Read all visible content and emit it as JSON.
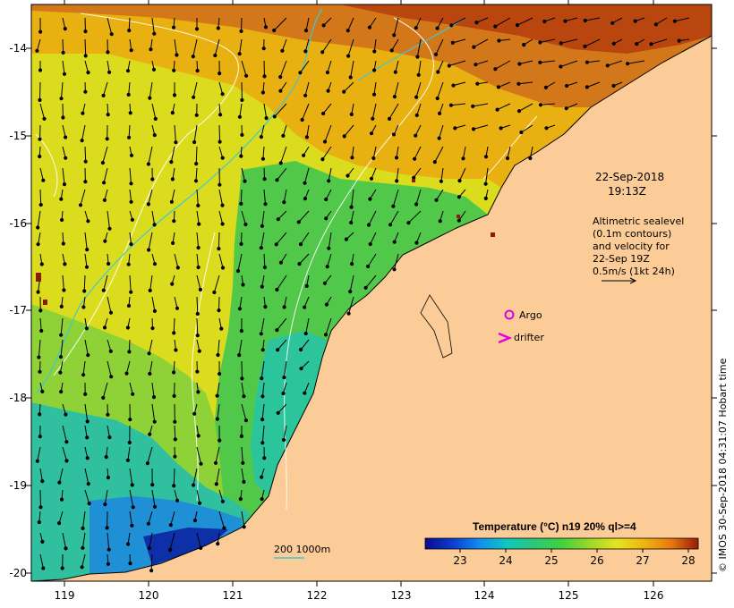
{
  "map": {
    "date": "22-Sep-2018",
    "time": "19:13Z",
    "altimetry_lines": [
      "Altimetric sealevel",
      "(0.1m contours)",
      "and velocity for",
      "22-Sep 19Z",
      "0.5m/s (1kt 24h)"
    ],
    "legend": [
      {
        "label": "Argo",
        "marker": "circle",
        "color": "#e000e0"
      },
      {
        "label": "drifter",
        "marker": "chevron",
        "color": "#e000e0"
      }
    ],
    "depth_label": "200  1000m",
    "credit": "© IMOS 30-Sep-2018 04:31:07 Hobart time",
    "colorbar": {
      "title": "Temperature (°C) n19 20% ql>=4",
      "ticks": [
        "23",
        "24",
        "25",
        "26",
        "27",
        "28"
      ],
      "range": [
        22.2,
        28.3
      ],
      "colors": [
        "#0a0a90",
        "#0b3bd0",
        "#0f8ef0",
        "#10c8c0",
        "#2cc878",
        "#3ed23e",
        "#9ad82a",
        "#e4e41e",
        "#f0b412",
        "#e87a0e",
        "#cc4a10",
        "#9a1a0a"
      ]
    },
    "lon_ticks": [
      "119",
      "120",
      "121",
      "122",
      "123",
      "124",
      "125",
      "126"
    ],
    "lat_ticks": [
      "-14",
      "-15",
      "-16",
      "-17",
      "-18",
      "-19",
      "-20"
    ],
    "land_color": "#fccc98",
    "contour_color": "#40c8d0"
  }
}
